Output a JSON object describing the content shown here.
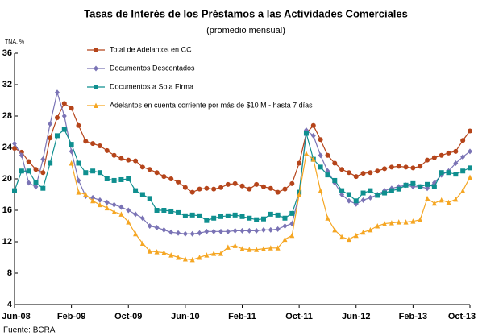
{
  "chart_data": {
    "type": "line",
    "title": "Tasas de Interés de los Préstamos a las Actividades Comerciales",
    "subtitle": "(promedio mensual)",
    "y_label": "TNA, %",
    "source": "Fuente: BCRA",
    "legend": "top-left",
    "categories": [
      "Jun-08",
      null,
      null,
      null,
      null,
      null,
      null,
      null,
      "Feb-09",
      null,
      null,
      null,
      null,
      null,
      null,
      null,
      "Oct-09",
      null,
      null,
      null,
      null,
      null,
      null,
      null,
      "Jun-10",
      null,
      null,
      null,
      null,
      null,
      null,
      null,
      "Feb-11",
      null,
      null,
      null,
      null,
      null,
      null,
      null,
      "Oct-11",
      null,
      null,
      null,
      null,
      null,
      null,
      null,
      "Jun-12",
      null,
      null,
      null,
      null,
      null,
      null,
      null,
      "Feb-13",
      null,
      null,
      null,
      null,
      null,
      null,
      null,
      "Oct-13"
    ],
    "ylim": [
      4,
      36
    ],
    "yticks": [
      4,
      8,
      12,
      16,
      20,
      24,
      28,
      32,
      36
    ],
    "series": [
      {
        "name": "Total de Adelantos en CC",
        "color": "#b5441a",
        "marker": "circle",
        "values": [
          23.9,
          23.4,
          22.2,
          21.2,
          20.8,
          25.2,
          27.8,
          29.6,
          29.0,
          26.8,
          24.8,
          24.5,
          24.2,
          23.6,
          23.0,
          22.6,
          22.4,
          22.3,
          21.5,
          21.2,
          20.8,
          20.3,
          20.0,
          19.6,
          18.9,
          18.3,
          18.7,
          18.8,
          18.7,
          18.9,
          19.3,
          19.4,
          19.1,
          18.7,
          19.3,
          19.0,
          18.8,
          18.3,
          18.7,
          19.4,
          22.0,
          25.8,
          26.8,
          25.0,
          23.0,
          22.0,
          21.2,
          20.8,
          20.3,
          20.7,
          20.8,
          21.0,
          21.3,
          21.5,
          21.6,
          21.5,
          21.4,
          21.6,
          22.4,
          22.7,
          23.0,
          23.3,
          23.5,
          24.9,
          26.1
        ]
      },
      {
        "name": "Documentos Descontados",
        "color": "#7a73b5",
        "marker": "diamond",
        "values": [
          24.5,
          23.0,
          19.5,
          19.0,
          22.5,
          27.0,
          31.0,
          28.0,
          23.5,
          19.8,
          17.8,
          17.6,
          17.3,
          17.0,
          16.7,
          16.4,
          16.0,
          15.5,
          15.0,
          14.0,
          13.8,
          13.5,
          13.2,
          13.1,
          13.0,
          13.0,
          13.1,
          13.3,
          13.3,
          13.3,
          13.3,
          13.4,
          13.4,
          13.4,
          13.4,
          13.5,
          13.5,
          13.6,
          14.0,
          14.3,
          18.0,
          26.2,
          25.5,
          23.0,
          21.0,
          19.5,
          18.0,
          17.2,
          16.8,
          17.3,
          17.6,
          18.0,
          18.5,
          18.8,
          19.0,
          19.2,
          19.0,
          19.0,
          18.8,
          19.5,
          20.5,
          21.0,
          22.0,
          22.8,
          23.5
        ]
      },
      {
        "name": "Documentos a Sola Firma",
        "color": "#0f8f8f",
        "marker": "square",
        "values": [
          18.5,
          21.0,
          21.0,
          19.5,
          18.8,
          22.0,
          25.5,
          26.3,
          24.4,
          22.0,
          20.8,
          21.0,
          20.8,
          20.0,
          19.8,
          19.9,
          20.0,
          18.5,
          18.0,
          17.5,
          16.0,
          16.0,
          15.9,
          15.7,
          15.3,
          15.4,
          15.3,
          14.7,
          15.0,
          15.2,
          15.3,
          15.4,
          15.2,
          15.0,
          14.8,
          14.9,
          15.5,
          15.4,
          15.0,
          15.6,
          18.3,
          25.8,
          22.5,
          21.5,
          20.5,
          19.8,
          18.5,
          18.0,
          17.2,
          18.2,
          18.5,
          17.9,
          18.2,
          18.5,
          18.7,
          19.2,
          19.4,
          19.0,
          19.3,
          19.0,
          20.8,
          20.8,
          20.6,
          21.0,
          21.4
        ]
      },
      {
        "name": "Adelantos en cuenta corriente por más de $10 M - hasta 7 días",
        "color": "#f5a623",
        "marker": "triangle",
        "values": [
          null,
          null,
          null,
          null,
          null,
          null,
          null,
          null,
          22.0,
          18.3,
          18.0,
          17.2,
          16.7,
          16.3,
          15.8,
          15.5,
          14.5,
          13.0,
          11.8,
          10.8,
          10.7,
          10.6,
          10.3,
          10.0,
          9.8,
          9.7,
          10.0,
          10.3,
          10.5,
          10.5,
          11.3,
          11.5,
          11.1,
          11.0,
          11.0,
          11.1,
          11.2,
          11.2,
          12.3,
          12.8,
          18.0,
          23.2,
          22.5,
          18.5,
          15.0,
          13.5,
          12.6,
          12.3,
          12.8,
          13.2,
          13.5,
          14.0,
          14.3,
          14.4,
          14.5,
          14.5,
          14.6,
          14.8,
          17.5,
          16.9,
          17.3,
          17.0,
          17.4,
          18.5,
          20.2
        ]
      }
    ]
  }
}
